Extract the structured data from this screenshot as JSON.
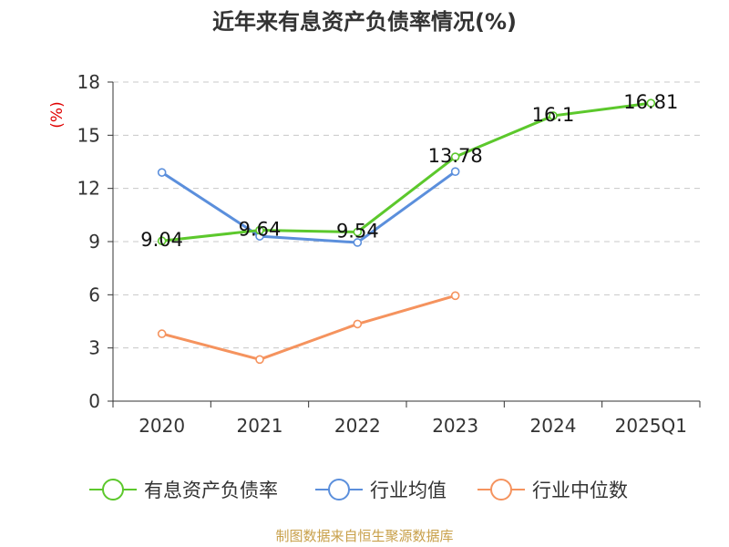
{
  "chart_data": {
    "type": "line",
    "title": "近年来有息资产负债率情况(%)",
    "ylabel": "(%)",
    "xlabel": "",
    "categories": [
      "2020",
      "2021",
      "2022",
      "2023",
      "2024",
      "2025Q1"
    ],
    "ylim": [
      0,
      18
    ],
    "yticks": [
      0,
      3,
      6,
      9,
      12,
      15,
      18
    ],
    "grid": true,
    "legend_position": "bottom",
    "series": [
      {
        "name": "有息资产负债率",
        "color": "#5cc82c",
        "values": [
          9.04,
          9.64,
          9.54,
          13.78,
          16.1,
          16.81
        ],
        "labels": [
          "9.04",
          "9.64",
          "9.54",
          "13.78",
          "16.1",
          "16.81"
        ]
      },
      {
        "name": "行业均值",
        "color": "#5b8fdc",
        "values": [
          12.9,
          9.3,
          8.95,
          12.95,
          null,
          null
        ]
      },
      {
        "name": "行业中位数",
        "color": "#f5935e",
        "values": [
          3.8,
          2.35,
          4.35,
          5.95,
          null,
          null
        ]
      }
    ]
  },
  "footer": {
    "source": "制图数据来自恒生聚源数据库"
  }
}
